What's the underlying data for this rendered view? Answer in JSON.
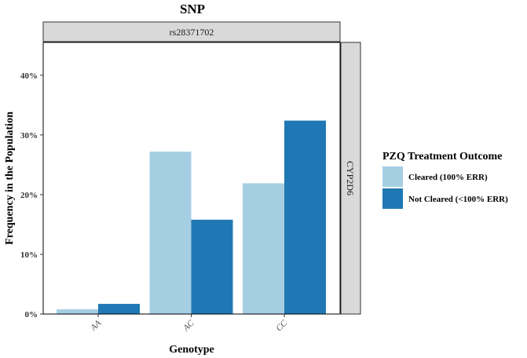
{
  "chart_data": {
    "type": "bar",
    "title": "SNP",
    "facet_column": "rs28371702",
    "facet_row": "CYP2D6",
    "xlabel": "Genotype",
    "ylabel": "Frequency in the Population",
    "categories": [
      "AA",
      "AC",
      "CC"
    ],
    "series": [
      {
        "name": "Cleared (100% ERR)",
        "values": [
          0.8,
          27.2,
          21.9
        ],
        "color": "#a6cee3"
      },
      {
        "name": "Not Cleared (<100% ERR)",
        "values": [
          1.7,
          15.8,
          32.4
        ],
        "color": "#1f78b4"
      }
    ],
    "yticks": [
      "0%",
      "10%",
      "20%",
      "30%",
      "40%"
    ],
    "ytick_values": [
      0,
      10,
      20,
      30,
      40
    ],
    "ylim": [
      0,
      45.5
    ],
    "legend": {
      "title": "PZQ Treatment Outcome",
      "position": "right"
    },
    "grid": false
  }
}
